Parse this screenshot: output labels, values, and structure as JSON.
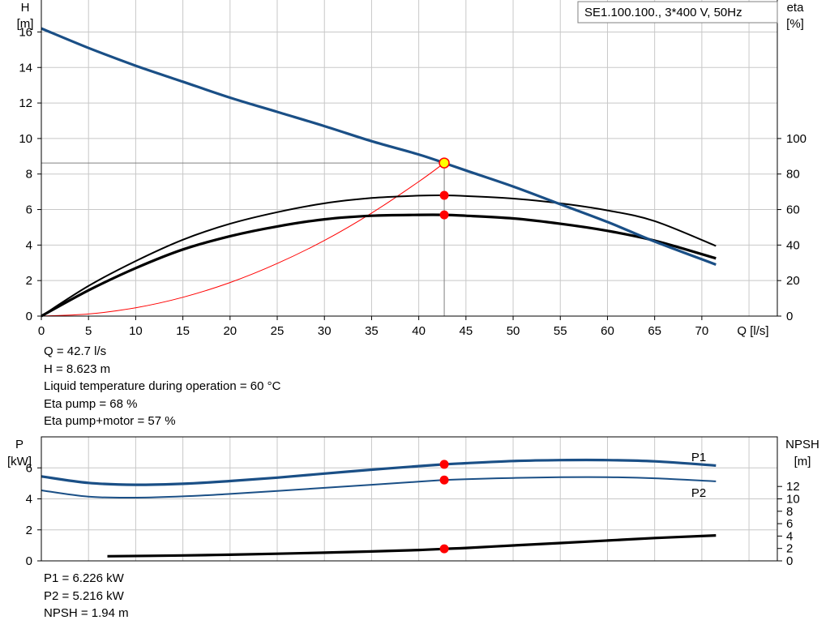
{
  "header": {
    "model_label": "SE1.100.100., 3*400 V, 50Hz"
  },
  "colors": {
    "pump_curve": "#1a4f86",
    "power_curve": "#1a4f86",
    "efficiency_curve": "#000000",
    "system_curve": "#ff0000",
    "duty_point_fill": "#ffff00",
    "marker": "#ff0000",
    "grid": "#c8c8c8"
  },
  "chart_data": [
    {
      "type": "line",
      "id": "qh-chart",
      "title": "",
      "xlabel": "Q [l/s]",
      "ylabel_left_name": "H",
      "ylabel_left_unit": "[m]",
      "ylabel_right_name": "eta",
      "ylabel_right_unit": "[%]",
      "xlim": [
        0,
        78
      ],
      "ylim_left": [
        0,
        17.8
      ],
      "ylim_right": [
        0,
        178
      ],
      "x_ticks": [
        0,
        5,
        10,
        15,
        20,
        25,
        30,
        35,
        40,
        45,
        50,
        55,
        60,
        65,
        70
      ],
      "y_left_ticks": [
        0,
        2,
        4,
        6,
        8,
        10,
        12,
        14,
        16
      ],
      "y_right_ticks": [
        0,
        20,
        40,
        60,
        80,
        100
      ],
      "grid": true,
      "series": [
        {
          "axis": "left",
          "style": "pump",
          "x": [
            0,
            5,
            10,
            15,
            20,
            25,
            30,
            35,
            40,
            42.7,
            45,
            50,
            55,
            60,
            65,
            71.5
          ],
          "y": [
            16.2,
            15.1,
            14.1,
            13.2,
            12.3,
            11.5,
            10.7,
            9.85,
            9.1,
            8.623,
            8.2,
            7.3,
            6.3,
            5.3,
            4.2,
            2.9
          ]
        },
        {
          "axis": "right",
          "style": "eta_thin",
          "x": [
            0,
            5,
            10,
            15,
            20,
            25,
            30,
            35,
            40,
            42.7,
            45,
            50,
            55,
            60,
            65,
            71.5
          ],
          "y": [
            0,
            17,
            31,
            43,
            52,
            58.5,
            63.5,
            66.5,
            67.8,
            68,
            67.6,
            66.2,
            63.5,
            59.5,
            53.5,
            39.5
          ]
        },
        {
          "axis": "right",
          "style": "eta_thick",
          "x": [
            0,
            5,
            10,
            15,
            20,
            25,
            30,
            35,
            40,
            42.7,
            45,
            50,
            55,
            60,
            65,
            71.5
          ],
          "y": [
            0,
            14.5,
            27,
            37.5,
            45,
            50.5,
            54.5,
            56.5,
            57,
            57,
            56.5,
            55,
            52,
            48,
            42.5,
            32.5
          ]
        },
        {
          "axis": "left",
          "style": "system",
          "x": [
            0,
            5,
            10,
            15,
            20,
            25,
            30,
            35,
            40,
            42.7
          ],
          "y": [
            0,
            0.12,
            0.47,
            1.06,
            1.89,
            2.96,
            4.26,
            5.8,
            7.57,
            8.623
          ]
        }
      ],
      "duty_point": {
        "x": 42.7,
        "y": 8.623
      },
      "eta_markers": [
        {
          "x": 42.7,
          "y": 68
        },
        {
          "x": 42.7,
          "y": 57
        }
      ]
    },
    {
      "type": "line",
      "id": "power-chart",
      "title": "",
      "xlabel": "",
      "ylabel_left_name": "P",
      "ylabel_left_unit": "[kW]",
      "ylabel_right_name": "NPSH",
      "ylabel_right_unit": "[m]",
      "xlim": [
        0,
        78
      ],
      "ylim_left": [
        0,
        8
      ],
      "ylim_right": [
        0,
        20
      ],
      "y_left_ticks": [
        0,
        2,
        4,
        6
      ],
      "y_right_ticks": [
        0,
        2,
        4,
        6,
        8,
        10,
        12
      ],
      "grid": true,
      "series": [
        {
          "axis": "left",
          "name": "P1",
          "style": "p1",
          "x": [
            0,
            5,
            10,
            15,
            20,
            25,
            30,
            35,
            40,
            42.7,
            45,
            50,
            55,
            60,
            65,
            71.5
          ],
          "y": [
            5.45,
            5.03,
            4.91,
            4.97,
            5.15,
            5.37,
            5.63,
            5.88,
            6.11,
            6.226,
            6.3,
            6.44,
            6.5,
            6.5,
            6.42,
            6.15
          ]
        },
        {
          "axis": "left",
          "name": "P2",
          "style": "p2",
          "x": [
            0,
            5,
            10,
            15,
            20,
            25,
            30,
            35,
            40,
            42.7,
            45,
            50,
            55,
            60,
            65,
            71.5
          ],
          "y": [
            4.55,
            4.14,
            4.08,
            4.16,
            4.32,
            4.51,
            4.71,
            4.91,
            5.11,
            5.216,
            5.27,
            5.35,
            5.4,
            5.4,
            5.33,
            5.13
          ]
        },
        {
          "axis": "right",
          "style": "npsh",
          "x": [
            7,
            15,
            20,
            25,
            30,
            35,
            40,
            42.7,
            45,
            50,
            55,
            60,
            65,
            71.5
          ],
          "y": [
            0.75,
            0.87,
            1.0,
            1.15,
            1.32,
            1.52,
            1.75,
            1.94,
            2.08,
            2.48,
            2.88,
            3.28,
            3.68,
            4.1
          ]
        }
      ],
      "markers": [
        {
          "axis": "left",
          "x": 42.7,
          "y": 6.226
        },
        {
          "axis": "left",
          "x": 42.7,
          "y": 5.216
        },
        {
          "axis": "right",
          "x": 42.7,
          "y": 1.94
        }
      ]
    }
  ],
  "info_top": [
    "Q = 42.7 l/s",
    "H = 8.623 m",
    "Liquid temperature during operation = 60 °C",
    "Eta pump = 68 %",
    "Eta pump+motor = 57 %"
  ],
  "info_bottom": [
    "P1 = 6.226 kW",
    "P2 = 5.216 kW",
    "NPSH = 1.94 m"
  ]
}
